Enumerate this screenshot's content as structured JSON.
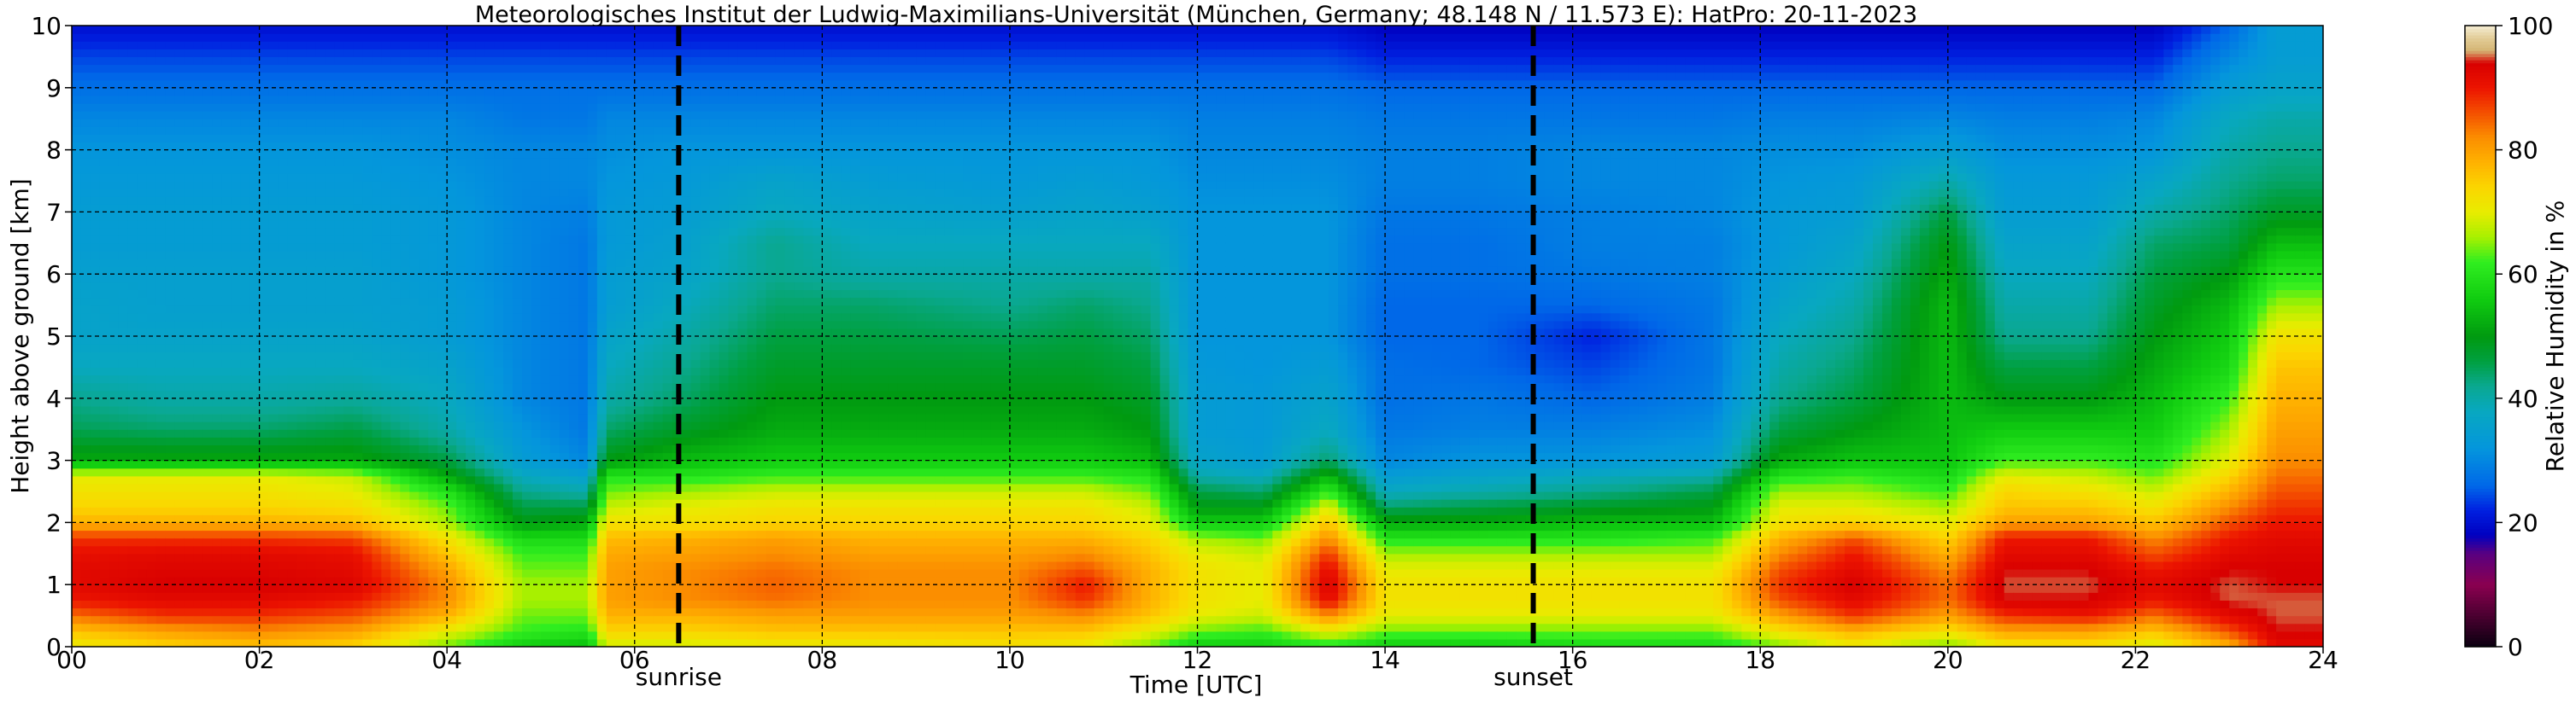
{
  "chart_data": {
    "type": "heatmap",
    "title": "Meteorologisches Institut der Ludwig-Maximilians-Universität (München, Germany; 48.148 N / 11.573 E):    HatPro: 20-11-2023",
    "xlabel": "Time [UTC]",
    "ylabel": "Height above ground [km]",
    "colorbar_label": "Relative Humidity in %",
    "xlim": [
      0,
      24
    ],
    "ylim": [
      0,
      10
    ],
    "clim": [
      0,
      100
    ],
    "x_ticks": [
      0,
      2,
      4,
      6,
      8,
      10,
      12,
      14,
      16,
      18,
      20,
      22,
      24
    ],
    "x_tick_labels": [
      "00",
      "02",
      "04",
      "06",
      "08",
      "10",
      "12",
      "14",
      "16",
      "18",
      "20",
      "22",
      "24"
    ],
    "y_ticks": [
      0,
      1,
      2,
      3,
      4,
      5,
      6,
      7,
      8,
      9,
      10
    ],
    "y_tick_labels": [
      "0",
      "1",
      "2",
      "3",
      "4",
      "5",
      "6",
      "7",
      "8",
      "9",
      "10"
    ],
    "colorbar_ticks": [
      0,
      20,
      40,
      60,
      80,
      100
    ],
    "colorbar_tick_labels": [
      "0",
      "20",
      "40",
      "60",
      "80",
      "100"
    ],
    "grid": true,
    "markers": [
      {
        "label": "sunrise",
        "time": 6.47
      },
      {
        "label": "sunset",
        "time": 15.58
      }
    ],
    "height_levels_km": [
      0,
      0.25,
      0.5,
      0.75,
      1,
      1.25,
      1.5,
      1.75,
      2,
      2.25,
      2.5,
      2.75,
      3,
      3.5,
      4,
      4.5,
      5,
      5.5,
      6,
      6.5,
      7,
      7.5,
      8,
      8.5,
      9,
      9.5,
      10
    ],
    "profiles": [
      {
        "time": 0.0,
        "rh": [
          70,
          76,
          84,
          90,
          92,
          92,
          91,
          88,
          78,
          74,
          72,
          70,
          52,
          45,
          42,
          38,
          36,
          36,
          35,
          34,
          34,
          33,
          32,
          30,
          27,
          24,
          20
        ]
      },
      {
        "time": 1.0,
        "rh": [
          74,
          80,
          88,
          92,
          94,
          93,
          92,
          88,
          78,
          74,
          72,
          70,
          52,
          44,
          40,
          38,
          36,
          35,
          35,
          34,
          34,
          33,
          32,
          30,
          27,
          24,
          20
        ]
      },
      {
        "time": 2.0,
        "rh": [
          76,
          82,
          88,
          92,
          94,
          93,
          92,
          88,
          78,
          74,
          72,
          70,
          52,
          44,
          40,
          38,
          36,
          35,
          35,
          34,
          34,
          33,
          32,
          30,
          27,
          24,
          20
        ]
      },
      {
        "time": 3.0,
        "rh": [
          74,
          80,
          86,
          90,
          93,
          92,
          91,
          87,
          77,
          73,
          70,
          68,
          52,
          46,
          41,
          38,
          36,
          35,
          35,
          34,
          34,
          33,
          32,
          30,
          27,
          24,
          20
        ]
      },
      {
        "time": 4.0,
        "rh": [
          64,
          70,
          78,
          82,
          82,
          80,
          76,
          72,
          66,
          64,
          60,
          52,
          46,
          40,
          38,
          36,
          34,
          34,
          33,
          33,
          33,
          32,
          31,
          30,
          27,
          24,
          20
        ]
      },
      {
        "time": 4.8,
        "rh": [
          56,
          62,
          64,
          66,
          66,
          64,
          62,
          58,
          50,
          46,
          42,
          38,
          34,
          32,
          30,
          30,
          30,
          30,
          30,
          30,
          30,
          30,
          30,
          28,
          27,
          24,
          20
        ]
      },
      {
        "time": 5.5,
        "rh": [
          54,
          60,
          64,
          66,
          66,
          64,
          62,
          58,
          52,
          46,
          40,
          35,
          30,
          28,
          28,
          28,
          28,
          28,
          28,
          28,
          29,
          30,
          30,
          28,
          27,
          24,
          20
        ]
      },
      {
        "time": 5.7,
        "rh": [
          68,
          74,
          78,
          80,
          80,
          80,
          79,
          77,
          72,
          68,
          64,
          60,
          50,
          44,
          40,
          38,
          36,
          34,
          34,
          33,
          33,
          32,
          31,
          30,
          27,
          24,
          20
        ]
      },
      {
        "time": 6.5,
        "rh": [
          68,
          74,
          78,
          82,
          82,
          82,
          80,
          78,
          72,
          70,
          66,
          60,
          54,
          48,
          44,
          42,
          40,
          38,
          36,
          35,
          34,
          33,
          32,
          30,
          27,
          24,
          20
        ]
      },
      {
        "time": 7.5,
        "rh": [
          70,
          76,
          80,
          84,
          85,
          84,
          82,
          80,
          74,
          72,
          68,
          62,
          56,
          52,
          50,
          48,
          46,
          44,
          42,
          42,
          38,
          36,
          32,
          30,
          27,
          24,
          20
        ]
      },
      {
        "time": 8.5,
        "rh": [
          70,
          76,
          80,
          82,
          82,
          82,
          80,
          78,
          74,
          72,
          68,
          62,
          56,
          52,
          50,
          48,
          46,
          44,
          40,
          38,
          36,
          34,
          32,
          30,
          27,
          24,
          20
        ]
      },
      {
        "time": 10.0,
        "rh": [
          72,
          76,
          80,
          82,
          82,
          82,
          80,
          78,
          74,
          72,
          68,
          62,
          56,
          52,
          50,
          48,
          45,
          42,
          40,
          38,
          35,
          33,
          32,
          30,
          27,
          24,
          20
        ]
      },
      {
        "time": 10.8,
        "rh": [
          70,
          76,
          82,
          88,
          90,
          86,
          82,
          78,
          74,
          72,
          68,
          62,
          56,
          52,
          50,
          48,
          46,
          44,
          40,
          38,
          36,
          34,
          32,
          30,
          27,
          24,
          20
        ]
      },
      {
        "time": 11.5,
        "rh": [
          64,
          70,
          76,
          78,
          78,
          78,
          76,
          74,
          70,
          68,
          64,
          60,
          54,
          50,
          48,
          46,
          44,
          42,
          40,
          38,
          35,
          33,
          32,
          30,
          27,
          24,
          20
        ]
      },
      {
        "time": 12.0,
        "rh": [
          56,
          64,
          70,
          72,
          72,
          72,
          70,
          66,
          56,
          50,
          46,
          40,
          36,
          34,
          34,
          33,
          32,
          32,
          32,
          32,
          32,
          31,
          30,
          29,
          27,
          24,
          20
        ]
      },
      {
        "time": 12.7,
        "rh": [
          56,
          62,
          68,
          70,
          70,
          70,
          68,
          64,
          56,
          50,
          44,
          38,
          34,
          33,
          33,
          32,
          32,
          32,
          32,
          32,
          32,
          31,
          30,
          29,
          27,
          24,
          20
        ]
      },
      {
        "time": 13.4,
        "rh": [
          60,
          70,
          82,
          92,
          94,
          92,
          88,
          82,
          76,
          70,
          62,
          54,
          44,
          38,
          36,
          34,
          32,
          32,
          32,
          32,
          32,
          31,
          30,
          29,
          27,
          24,
          20
        ]
      },
      {
        "time": 14.0,
        "rh": [
          56,
          64,
          70,
          72,
          72,
          70,
          66,
          60,
          52,
          44,
          38,
          34,
          30,
          28,
          27,
          27,
          26,
          26,
          27,
          27,
          28,
          29,
          29,
          28,
          26,
          22,
          18
        ]
      },
      {
        "time": 15.0,
        "rh": [
          56,
          64,
          70,
          72,
          72,
          70,
          66,
          60,
          52,
          46,
          40,
          36,
          32,
          29,
          28,
          26,
          26,
          26,
          27,
          27,
          28,
          29,
          29,
          28,
          26,
          22,
          18
        ]
      },
      {
        "time": 16.2,
        "rh": [
          58,
          64,
          70,
          72,
          72,
          70,
          66,
          60,
          54,
          48,
          42,
          38,
          32,
          29,
          26,
          24,
          22,
          26,
          28,
          29,
          29,
          30,
          30,
          28,
          26,
          22,
          18
        ]
      },
      {
        "time": 17.5,
        "rh": [
          58,
          64,
          70,
          72,
          72,
          70,
          66,
          62,
          54,
          50,
          46,
          40,
          34,
          31,
          29,
          28,
          28,
          28,
          29,
          29,
          30,
          30,
          30,
          28,
          26,
          22,
          18
        ]
      },
      {
        "time": 18.2,
        "rh": [
          64,
          72,
          80,
          86,
          88,
          86,
          82,
          78,
          72,
          70,
          66,
          60,
          52,
          46,
          42,
          40,
          38,
          36,
          34,
          33,
          33,
          32,
          31,
          29,
          26,
          22,
          18
        ]
      },
      {
        "time": 19.0,
        "rh": [
          70,
          78,
          88,
          92,
          94,
          92,
          90,
          86,
          74,
          70,
          66,
          62,
          55,
          50,
          46,
          44,
          42,
          40,
          38,
          36,
          34,
          33,
          31,
          29,
          26,
          22,
          18
        ]
      },
      {
        "time": 20.0,
        "rh": [
          64,
          72,
          80,
          84,
          84,
          82,
          78,
          74,
          70,
          66,
          62,
          58,
          55,
          54,
          54,
          54,
          54,
          54,
          52,
          50,
          46,
          40,
          34,
          30,
          26,
          22,
          18
        ]
      },
      {
        "time": 20.6,
        "rh": [
          70,
          80,
          88,
          94,
          95,
          94,
          92,
          90,
          80,
          76,
          74,
          70,
          62,
          56,
          50,
          46,
          42,
          40,
          38,
          36,
          34,
          33,
          31,
          29,
          26,
          22,
          18
        ]
      },
      {
        "time": 21.5,
        "rh": [
          72,
          80,
          90,
          94,
          95,
          94,
          92,
          90,
          80,
          76,
          72,
          68,
          62,
          56,
          50,
          46,
          42,
          40,
          38,
          36,
          34,
          33,
          31,
          29,
          26,
          22,
          18
        ]
      },
      {
        "time": 22.2,
        "rh": [
          68,
          76,
          84,
          90,
          92,
          90,
          86,
          82,
          76,
          72,
          68,
          64,
          60,
          56,
          54,
          52,
          50,
          48,
          46,
          44,
          40,
          36,
          32,
          30,
          26,
          22,
          18
        ]
      },
      {
        "time": 23.0,
        "rh": [
          78,
          86,
          92,
          95,
          95,
          94,
          92,
          90,
          86,
          82,
          78,
          74,
          70,
          66,
          62,
          58,
          56,
          54,
          50,
          46,
          44,
          42,
          40,
          38,
          34,
          30,
          26
        ]
      },
      {
        "time": 23.5,
        "rh": [
          92,
          94,
          95,
          95,
          94,
          94,
          93,
          92,
          90,
          88,
          86,
          84,
          82,
          80,
          78,
          76,
          72,
          66,
          60,
          54,
          48,
          44,
          42,
          40,
          36,
          34,
          34
        ]
      },
      {
        "time": 24.0,
        "rh": [
          92,
          94,
          95,
          95,
          94,
          94,
          93,
          92,
          90,
          88,
          86,
          84,
          82,
          80,
          78,
          76,
          72,
          66,
          60,
          54,
          48,
          44,
          42,
          40,
          36,
          34,
          34
        ]
      }
    ],
    "colormap": [
      [
        0,
        "#0a0010"
      ],
      [
        5,
        "#4a0030"
      ],
      [
        10,
        "#8a0050"
      ],
      [
        15,
        "#5a0080"
      ],
      [
        18,
        "#0000c0"
      ],
      [
        22,
        "#0020e0"
      ],
      [
        26,
        "#0068e8"
      ],
      [
        32,
        "#0496dc"
      ],
      [
        38,
        "#08a8c0"
      ],
      [
        42,
        "#0aa890"
      ],
      [
        46,
        "#00a040"
      ],
      [
        50,
        "#009a10"
      ],
      [
        56,
        "#10cc10"
      ],
      [
        62,
        "#30ee20"
      ],
      [
        66,
        "#a8f000"
      ],
      [
        70,
        "#e8ec00"
      ],
      [
        74,
        "#fbd600"
      ],
      [
        78,
        "#ffb200"
      ],
      [
        82,
        "#fb8e00"
      ],
      [
        86,
        "#f45000"
      ],
      [
        90,
        "#ec1400"
      ],
      [
        94,
        "#d80000"
      ],
      [
        96,
        "#d4b474"
      ],
      [
        98,
        "#e2cc96"
      ],
      [
        100,
        "#f4ecd2"
      ]
    ]
  }
}
